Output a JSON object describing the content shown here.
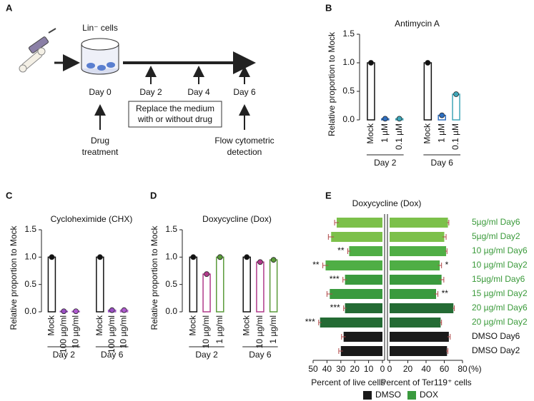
{
  "panels": [
    "A",
    "B",
    "C",
    "D",
    "E"
  ],
  "diagram": {
    "cells_label": "Lin⁻ cells",
    "days": [
      "Day 0",
      "Day 2",
      "Day 4",
      "Day 6"
    ],
    "medium_box": [
      "Replace the medium",
      "with or without drug"
    ],
    "drug_label": [
      "Drug",
      "treatment"
    ],
    "detection_label": [
      "Flow cytometric",
      "detection"
    ]
  },
  "chart_data": [
    {
      "type": "dot",
      "title": "Antimycin A",
      "ylabel": "Relative proportion to Mock",
      "categories": [
        "Mock",
        "1 µM",
        "0.1 µM",
        "Mock",
        "1 µM",
        "0.1 µM"
      ],
      "values": [
        1.0,
        0.02,
        0.02,
        1.0,
        0.08,
        0.45
      ],
      "colors": [
        "#111111",
        "#2f6fc0",
        "#3fa6b8",
        "#111111",
        "#2f6fc0",
        "#3fa6b8"
      ],
      "groups": [
        "Day 2",
        "Day 6"
      ],
      "ylim": [
        0,
        1.5
      ],
      "yticks": [
        {
          "value": 0,
          "label": "0.0"
        },
        0.5,
        {
          "value": 1,
          "label": "1.0"
        },
        1.5
      ]
    },
    {
      "type": "dot",
      "title": "Cycloheximide (CHX)",
      "ylabel": "Relative proportion to Mock",
      "categories": [
        "Mock",
        "100 µg/ml",
        "10 µg/ml",
        "Mock",
        "100 µg/ml",
        "10 µg/ml"
      ],
      "values": [
        1.0,
        0.01,
        0.01,
        1.0,
        0.03,
        0.03
      ],
      "colors": [
        "#111111",
        "#9b4fc4",
        "#b05ad0",
        "#111111",
        "#9b4fc4",
        "#b05ad0"
      ],
      "groups": [
        "Day 2",
        "Day 6"
      ],
      "ylim": [
        0,
        1.5
      ],
      "yticks": [
        {
          "value": 0,
          "label": "0.0"
        },
        0.5,
        {
          "value": 1,
          "label": "1.0"
        },
        1.5
      ]
    },
    {
      "type": "dot",
      "title": "Doxycycline (Dox)",
      "ylabel": "Relative proportion to Mock",
      "categories": [
        "Mock",
        "10 µg/ml",
        "1 µg/ml",
        "Mock",
        "10 µg/ml",
        "1 µg/ml"
      ],
      "values": [
        1.0,
        0.69,
        1.0,
        1.0,
        0.91,
        0.95
      ],
      "colors": [
        "#111111",
        "#b03a8a",
        "#5a9a3a",
        "#111111",
        "#b03a8a",
        "#5a9a3a"
      ],
      "groups": [
        "Day 2",
        "Day 6"
      ],
      "ylim": [
        0,
        1.5
      ],
      "yticks": [
        {
          "value": 0,
          "label": "0.0"
        },
        0.5,
        {
          "value": 1,
          "label": "1.0"
        },
        1.5
      ]
    },
    {
      "type": "butterfly",
      "title": "Doxycycline (Dox)",
      "categories": [
        "5µg/ml Day6",
        "5µg/ml Day2",
        "10 µg/ml Day6",
        "10 µg/ml Day2",
        "15µg/ml Day6",
        "15 µg/ml Day2",
        "20 µg/ml Day6",
        "20 µg/ml Day2",
        "DMSO Day6",
        "DMSO Day2"
      ],
      "bar_colors": [
        "#7cc04a",
        "#7cc04a",
        "#4fae45",
        "#4fae45",
        "#3a9a3e",
        "#3a9a3e",
        "#246b34",
        "#246b34",
        "#1a1a1a",
        "#1a1a1a"
      ],
      "label_colors": [
        "#3a9a3a",
        "#3a9a3a",
        "#3a9a3a",
        "#3a9a3a",
        "#3a9a3a",
        "#3a9a3a",
        "#3a9a3a",
        "#3a9a3a",
        "#111111",
        "#111111"
      ],
      "series": [
        {
          "name": "Percent of live cells",
          "values": [
            33,
            37,
            24,
            41,
            27,
            38,
            27,
            45,
            28,
            30
          ],
          "errors": [
            1.5,
            2,
            1,
            2,
            1.5,
            2,
            1,
            1,
            1.5,
            1.5
          ],
          "stars": [
            null,
            null,
            "**",
            "**",
            "***",
            null,
            "***",
            "***",
            null,
            null
          ],
          "xlim": [
            0,
            50
          ],
          "xticks": [
            50,
            40,
            30,
            20,
            10,
            0
          ]
        },
        {
          "name": "Percent of Ter119⁺ cells",
          "values": [
            64,
            60,
            62,
            55,
            57,
            51,
            70,
            56,
            65,
            63
          ],
          "errors": [
            1,
            2,
            1,
            2,
            2.5,
            2,
            1,
            1,
            1.5,
            1
          ],
          "stars": [
            null,
            null,
            null,
            "*",
            null,
            "**",
            null,
            null,
            null,
            null
          ],
          "xlim": [
            0,
            80
          ],
          "xticks": [
            0,
            20,
            40,
            60,
            80
          ]
        }
      ],
      "xunit": "(%)",
      "legend": [
        {
          "name": "DMSO",
          "color": "#1a1a1a"
        },
        {
          "name": "DOX",
          "color": "#3a9a3e"
        }
      ]
    }
  ]
}
